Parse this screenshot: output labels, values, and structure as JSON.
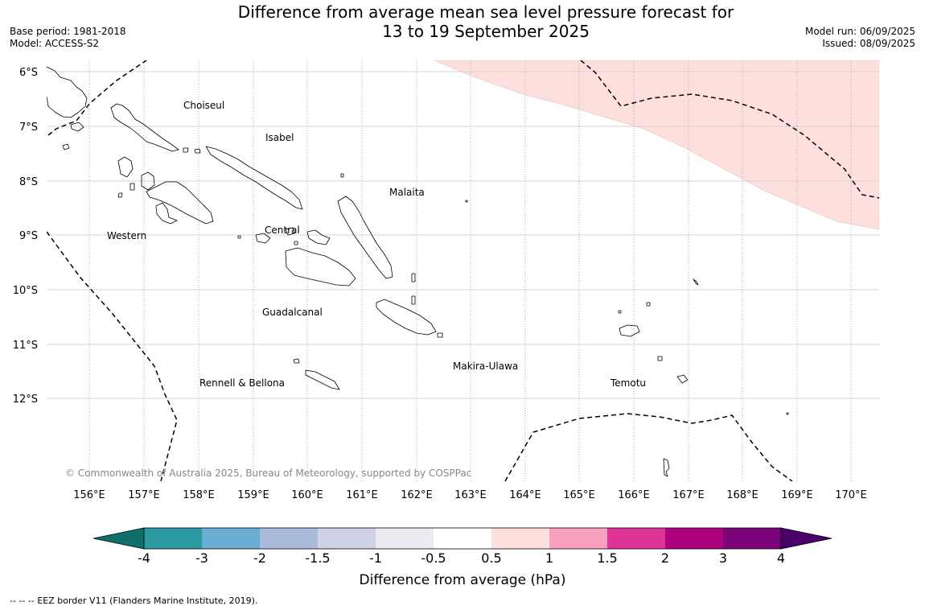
{
  "title": {
    "line1": "Difference from average mean sea level pressure forecast for",
    "line2": "13 to 19 September 2025"
  },
  "meta_left": {
    "base_period": "Base period: 1981-2018",
    "model": "Model: ACCESS-S2"
  },
  "meta_right": {
    "model_run": "Model run: 06/09/2025",
    "issued": "Issued: 08/09/2025"
  },
  "map": {
    "lat_labels": [
      "6°S",
      "7°S",
      "8°S",
      "9°S",
      "10°S",
      "11°S",
      "12°S"
    ],
    "lon_labels": [
      "156°E",
      "157°E",
      "158°E",
      "159°E",
      "160°E",
      "161°E",
      "162°E",
      "163°E",
      "164°E",
      "165°E",
      "166°E",
      "167°E",
      "168°E",
      "169°E",
      "170°E"
    ],
    "provinces": [
      "Choiseul",
      "Isabel",
      "Malaita",
      "Western",
      "Central",
      "Guadalcanal",
      "Makira-Ulawa",
      "Rennell & Bellona",
      "Temotu"
    ],
    "copyright": "© Commonwealth of Australia 2025, Bureau of Meteorology, supported by COSPPac",
    "anomaly_fill_color": "#fde0dd",
    "anomaly_class": "0.5 to 1 hPa"
  },
  "colorbar": {
    "label": "Difference from average (hPa)",
    "ticks": [
      "-4",
      "-3",
      "-2",
      "-1.5",
      "-1",
      "-0.5",
      "0.5",
      "1",
      "1.5",
      "2",
      "3",
      "4"
    ],
    "colors": [
      "#0f6f6b",
      "#2a9aa0",
      "#6aaed6",
      "#a9bcdc",
      "#cfd1e8",
      "#ecebf2",
      "#ffffff",
      "#fde0dd",
      "#f8a0bd",
      "#de3497",
      "#ae017e",
      "#7a0177",
      "#49006a"
    ]
  },
  "footer": {
    "legend_dash": "--  --  --",
    "eez": "EEZ border V11 (Flanders Marine Institute, 2019)."
  }
}
